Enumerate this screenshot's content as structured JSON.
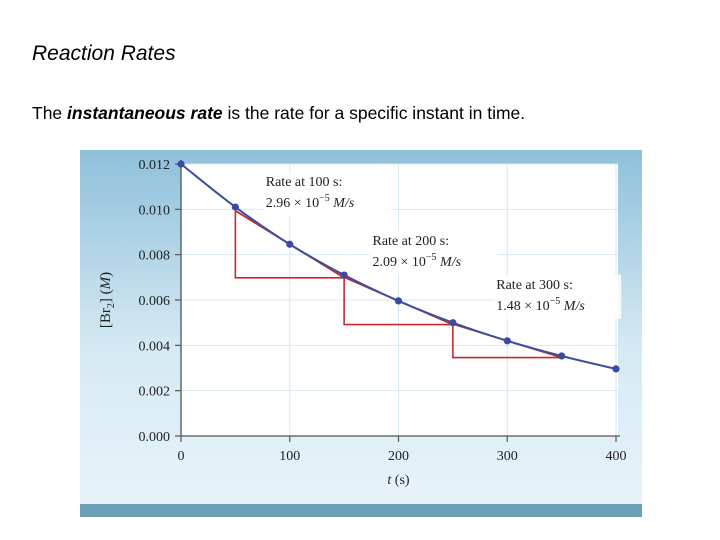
{
  "slide": {
    "title": "Reaction Rates",
    "subtitle_prefix": "The ",
    "subtitle_emph": "instantaneous rate",
    "subtitle_suffix": " is the rate for a specific instant in time."
  },
  "chart_data": {
    "type": "line",
    "xlabel": "t (s)",
    "ylabel": "[Br2] (M)",
    "xlim": [
      0,
      400
    ],
    "ylim": [
      0,
      0.012
    ],
    "x_ticks": [
      "0",
      "100",
      "200",
      "300",
      "400"
    ],
    "y_ticks": [
      "0.000",
      "0.002",
      "0.004",
      "0.006",
      "0.008",
      "0.010",
      "0.012"
    ],
    "grid": true,
    "series": [
      {
        "x": [
          0,
          50,
          100,
          150,
          200,
          250,
          300,
          350,
          400
        ],
        "y": [
          0.012,
          0.0101,
          0.00846,
          0.0071,
          0.00596,
          0.005,
          0.0042,
          0.00353,
          0.00296
        ],
        "color": "#3d4f9e"
      }
    ],
    "annotations": [
      {
        "rate_label": "Rate at 100 s:",
        "value_text": "2.96 × 10",
        "exponent": "−5",
        "unit": "M/s",
        "t": 100,
        "y": 0.00846,
        "rate": 2.96e-05
      },
      {
        "rate_label": "Rate at 200 s:",
        "value_text": "2.09 × 10",
        "exponent": "−5",
        "unit": "M/s",
        "t": 200,
        "y": 0.00596,
        "rate": 2.09e-05
      },
      {
        "rate_label": "Rate at 300 s:",
        "value_text": "1.48 × 10",
        "exponent": "−5",
        "unit": "M/s",
        "t": 300,
        "y": 0.0042,
        "rate": 1.48e-05
      }
    ],
    "colors": {
      "curve": "#3d4f9e",
      "point": "#3a4aa0",
      "tangent": "#c72a2e",
      "frame_top": "#8fc0db",
      "frame_bottom": "#d6eaf4",
      "axis": "#555555",
      "grid": "#d7e8f2"
    }
  }
}
